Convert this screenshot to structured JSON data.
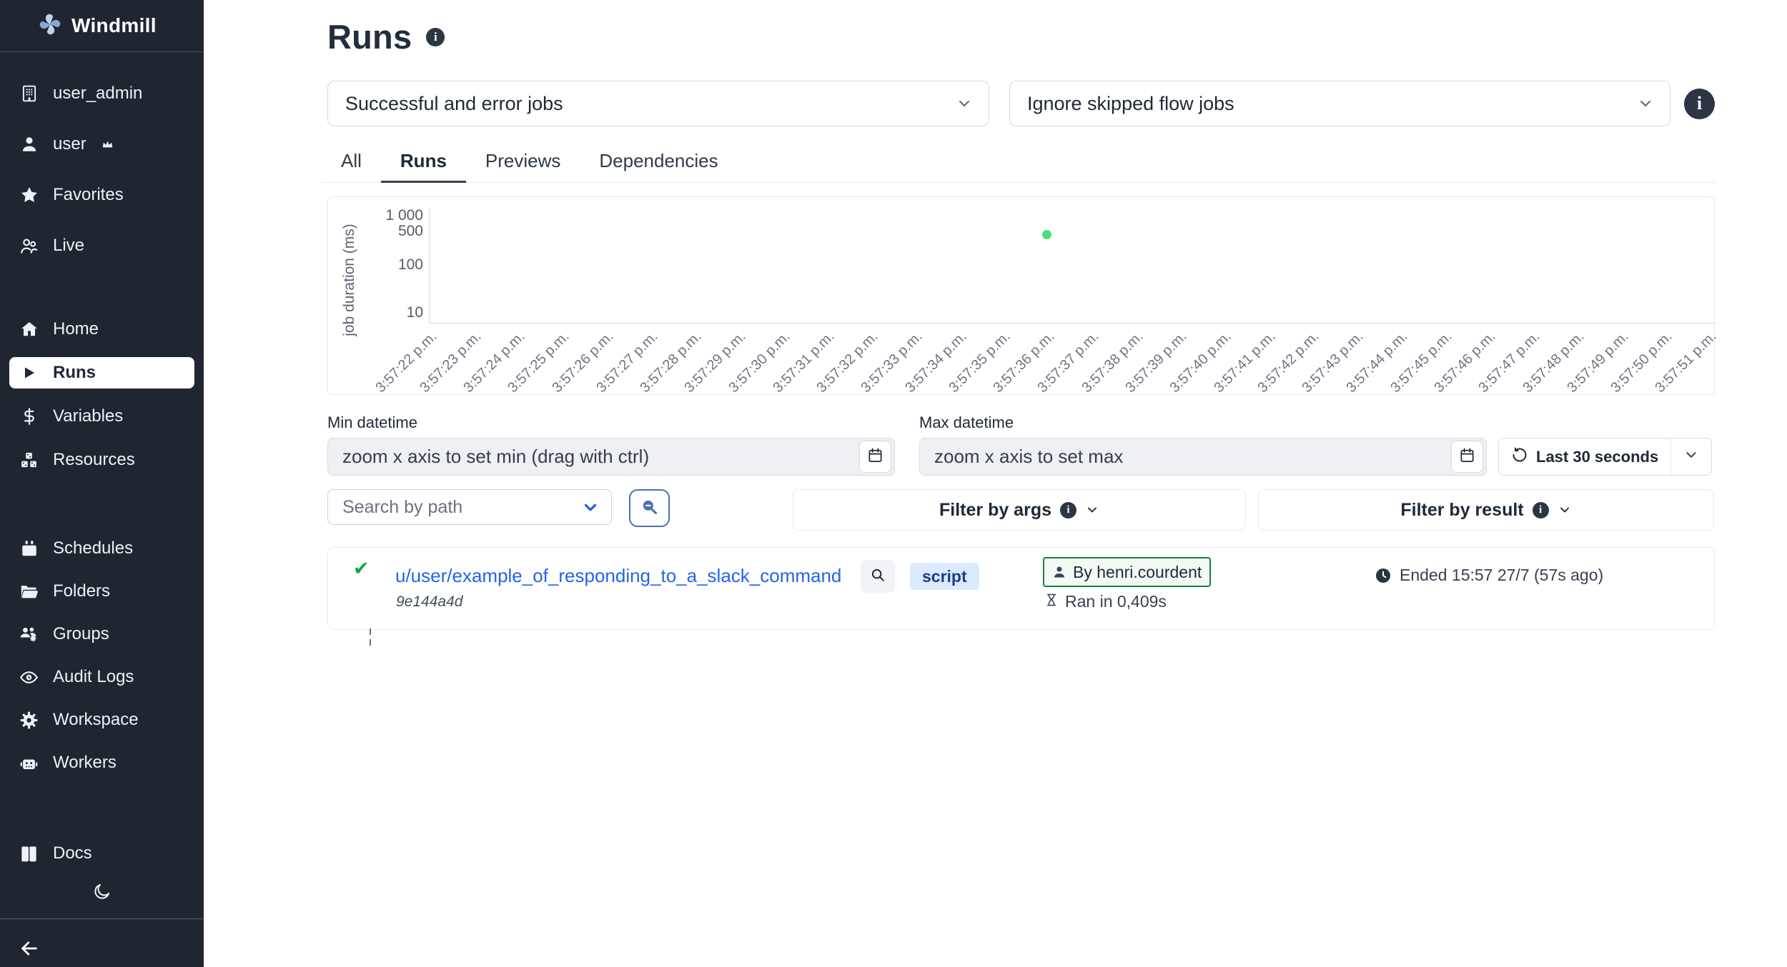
{
  "app": {
    "name": "Windmill"
  },
  "sidebar": {
    "workspace_items": [
      {
        "label": "user_admin",
        "icon": "building-icon"
      },
      {
        "label": "user",
        "icon": "user-icon",
        "suffix_icon": "crown-icon"
      },
      {
        "label": "Favorites",
        "icon": "star-icon"
      },
      {
        "label": "Live",
        "icon": "users-icon"
      }
    ],
    "nav_items": [
      {
        "label": "Home",
        "icon": "home-icon"
      },
      {
        "label": "Runs",
        "icon": "play-icon",
        "active": true
      },
      {
        "label": "Variables",
        "icon": "dollar-icon"
      },
      {
        "label": "Resources",
        "icon": "cubes-icon"
      }
    ],
    "admin_items": [
      {
        "label": "Schedules",
        "icon": "calendar-filled-icon"
      },
      {
        "label": "Folders",
        "icon": "folder-icon"
      },
      {
        "label": "Groups",
        "icon": "groups-icon"
      },
      {
        "label": "Audit Logs",
        "icon": "eye-icon"
      },
      {
        "label": "Workspace",
        "icon": "gear-icon"
      },
      {
        "label": "Workers",
        "icon": "robot-icon"
      }
    ],
    "footer_items": [
      {
        "label": "Docs",
        "icon": "book-icon"
      }
    ]
  },
  "header": {
    "title": "Runs"
  },
  "filters": {
    "job_kind_select": "Successful and error jobs",
    "flow_select": "Ignore skipped flow jobs"
  },
  "tabs": [
    {
      "label": "All"
    },
    {
      "label": "Runs",
      "active": true
    },
    {
      "label": "Previews"
    },
    {
      "label": "Dependencies"
    }
  ],
  "chart_data": {
    "type": "scatter",
    "ylabel": "job duration (ms)",
    "y_scale": "log",
    "y_ticks": [
      "1 000",
      "500",
      "100",
      "10"
    ],
    "x_labels": [
      "3:57:22 p.m.",
      "3:57:23 p.m.",
      "3:57:24 p.m.",
      "3:57:25 p.m.",
      "3:57:26 p.m.",
      "3:57:27 p.m.",
      "3:57:28 p.m.",
      "3:57:29 p.m.",
      "3:57:30 p.m.",
      "3:57:31 p.m.",
      "3:57:32 p.m.",
      "3:57:33 p.m.",
      "3:57:34 p.m.",
      "3:57:35 p.m.",
      "3:57:36 p.m.",
      "3:57:37 p.m.",
      "3:57:38 p.m.",
      "3:57:39 p.m.",
      "3:57:40 p.m.",
      "3:57:41 p.m.",
      "3:57:42 p.m.",
      "3:57:43 p.m.",
      "3:57:44 p.m.",
      "3:57:45 p.m.",
      "3:57:46 p.m.",
      "3:57:47 p.m.",
      "3:57:48 p.m.",
      "3:57:49 p.m.",
      "3:57:50 p.m.",
      "3:57:51 p.m."
    ],
    "points": [
      {
        "x_label": "3:57:36 p.m.",
        "x_index": 14,
        "duration_ms": 409,
        "color": "#4ade80"
      }
    ]
  },
  "datetime": {
    "min_label": "Min datetime",
    "max_label": "Max datetime",
    "min_placeholder": "zoom x axis to set min (drag with ctrl)",
    "max_placeholder": "zoom x axis to set max",
    "range_button": "Last 30 seconds"
  },
  "search": {
    "path_select": "Search by path",
    "filter_args": "Filter by args",
    "filter_result": "Filter by result"
  },
  "runs": [
    {
      "status": "success",
      "path": "u/user/example_of_responding_to_a_slack_command",
      "id": "9e144a4d",
      "kind": "script",
      "by": "By henri.courdent",
      "duration": "Ran in 0,409s",
      "ended": "Ended 15:57 27/7 (57s ago)"
    }
  ],
  "colors": {
    "sidebar_bg": "#1f2630",
    "accent_blue": "#2563eb",
    "success_green": "#16a34a",
    "dot_green": "#4ade80",
    "badge_blue_bg": "#dbeafe",
    "badge_blue_text": "#1e3a8a",
    "by_badge_border": "#16833c"
  }
}
